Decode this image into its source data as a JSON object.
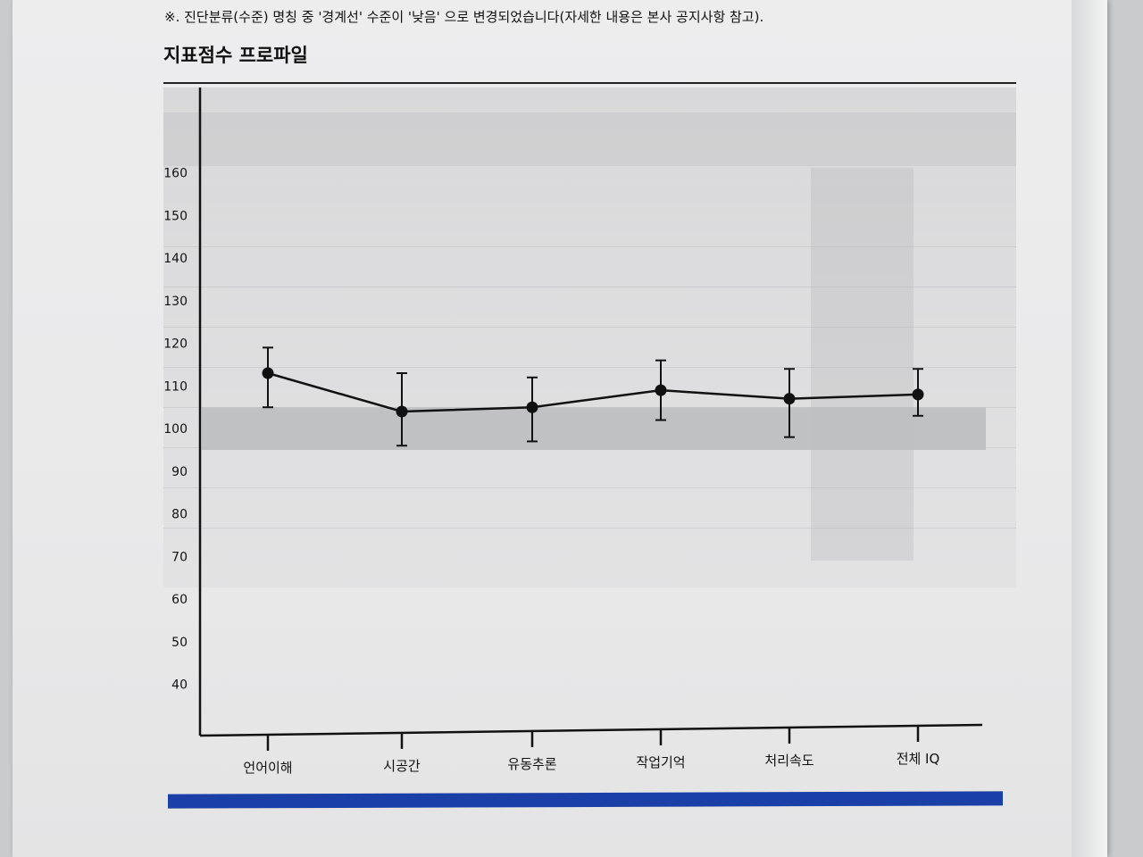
{
  "notice": "※. 진단분류(수준) 명칭 중 '경계선' 수준이 '낮음' 으로 변경되었습니다(자세한 내용은 본사 공지사항 참고).",
  "section_title": "지표점수 프로파일",
  "colors": {
    "line": "#111111",
    "band": "#bdbebf",
    "axis": "#111111",
    "accent": "#1a3fa6"
  },
  "chart_data": {
    "type": "line",
    "title": "",
    "xlabel": "",
    "ylabel": "",
    "categories": [
      "언어이해",
      "시공간",
      "유동추론",
      "작업기억",
      "처리속도",
      "전체 IQ"
    ],
    "series": [
      {
        "values": [
          113,
          104,
          105,
          109,
          107,
          108
        ],
        "error_low": [
          105,
          96,
          97,
          102,
          98,
          103
        ],
        "error_high": [
          119,
          113,
          112,
          116,
          114,
          114
        ]
      }
    ],
    "average_band": [
      95,
      105
    ],
    "yticks": [
      40,
      50,
      60,
      70,
      80,
      90,
      100,
      110,
      120,
      130,
      140,
      150,
      160
    ],
    "ylim": [
      28,
      180
    ],
    "grid": false
  }
}
